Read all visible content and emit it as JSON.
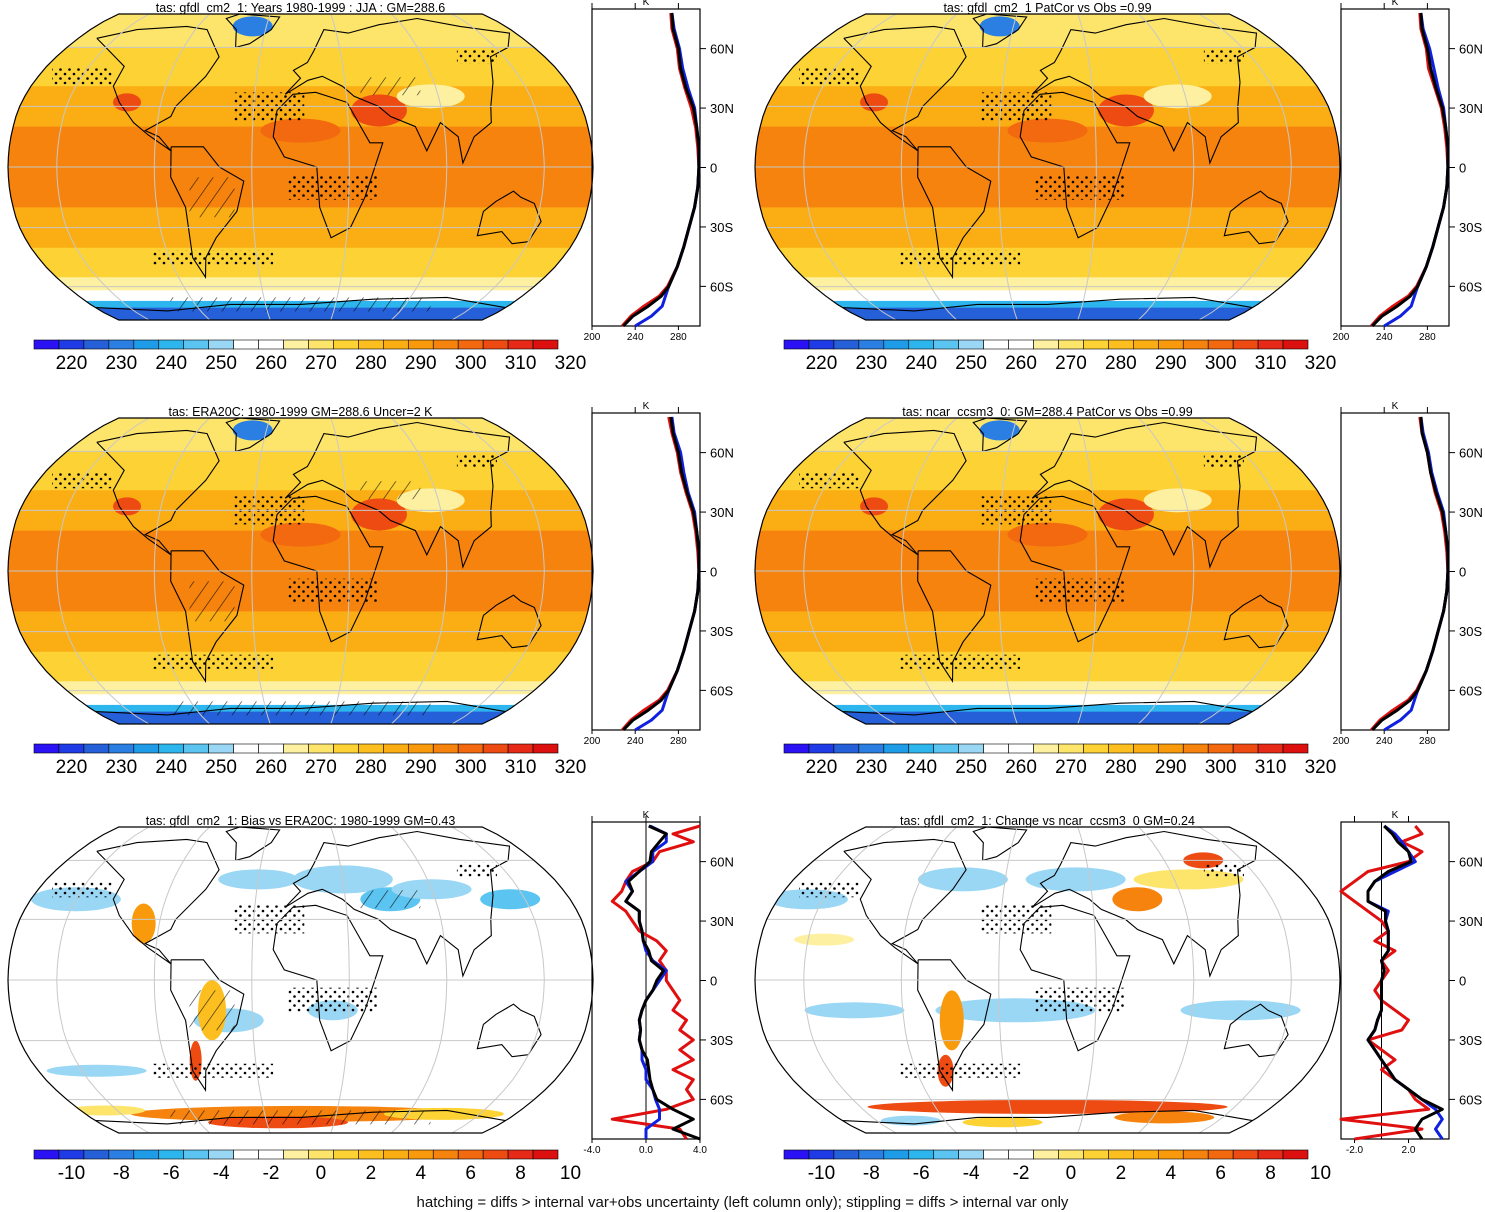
{
  "footer_note": "hatching = diffs > internal var+obs uncertainty (left column only); stippling = diffs > internal var only",
  "colors": {
    "abs_palette": [
      "#2b12f5",
      "#1f3be6",
      "#2660d8",
      "#2b7fe3",
      "#1e9ce8",
      "#2db6ee",
      "#5cc4f0",
      "#99d7f4",
      "#ffffff",
      "#ffffff",
      "#fdf0a0",
      "#fde46b",
      "#fcd235",
      "#fcbf1f",
      "#fbad14",
      "#f99a0d",
      "#f6830d",
      "#f3690f",
      "#ee4b12",
      "#e72a17",
      "#dd1010"
    ],
    "diff_palette": [
      "#2b12f5",
      "#1f3be6",
      "#2660d8",
      "#2b7fe3",
      "#1e9ce8",
      "#2db6ee",
      "#5cc4f0",
      "#99d7f4",
      "#ffffff",
      "#ffffff",
      "#fdf0a0",
      "#fde46b",
      "#fcd235",
      "#fcbf1f",
      "#fbad14",
      "#f99a0d",
      "#f6830d",
      "#f3690f",
      "#ee4b12",
      "#e72a17",
      "#dd1010"
    ],
    "model_line": "#e01010",
    "obs_line": "#1020e0",
    "mean_line": "#000000",
    "graticule": "#c8c8c8"
  },
  "chart_data": [
    {
      "type": "heatmap",
      "title": "tas: gfdl_cm2_1: Years 1980-1999 : JJA : GM=288.6",
      "colorbar_labels": [
        "220",
        "230",
        "240",
        "250",
        "260",
        "270",
        "280",
        "290",
        "300",
        "310",
        "320"
      ],
      "value_range": [
        215,
        325
      ],
      "palette": "abs",
      "map_kind": "abs",
      "hatch": true,
      "stipple": true,
      "profile": {
        "xlabel": "K",
        "x_ticks": [
          "200",
          "240",
          "280"
        ],
        "x_range": [
          200,
          300
        ],
        "lat_labels": [
          "60N",
          "30N",
          "0",
          "30S",
          "60S"
        ],
        "lat": [
          78,
          70,
          60,
          50,
          40,
          30,
          20,
          10,
          0,
          -10,
          -20,
          -30,
          -40,
          -50,
          -60,
          -65,
          -70,
          -75,
          -80
        ],
        "series": [
          {
            "color": "red",
            "values": [
              273,
              274,
              279,
              281,
              286,
              292,
              296,
              298,
              299,
              298,
              295,
              290,
              285,
              279,
              270,
              262,
              248,
              236,
              228
            ]
          },
          {
            "color": "blue",
            "values": [
              274,
              276,
              281,
              284,
              289,
              295,
              297,
              299,
              299,
              298,
              295,
              290,
              285,
              279,
              271,
              268,
              265,
              255,
              240
            ]
          },
          {
            "color": "black",
            "values": [
              274,
              275,
              280,
              282,
              287,
              294,
              297,
              299,
              299,
              298,
              295,
              290,
              285,
              279,
              271,
              264,
              252,
              238,
              229
            ]
          }
        ]
      }
    },
    {
      "type": "heatmap",
      "title": "tas: gfdl_cm2_1 PatCor vs Obs =0.99",
      "colorbar_labels": [
        "220",
        "230",
        "240",
        "250",
        "260",
        "270",
        "280",
        "290",
        "300",
        "310",
        "320"
      ],
      "value_range": [
        215,
        325
      ],
      "palette": "abs",
      "map_kind": "abs",
      "hatch": false,
      "stipple": true,
      "profile": {
        "xlabel": "K",
        "x_ticks": [
          "200",
          "240",
          "280"
        ],
        "x_range": [
          200,
          300
        ],
        "lat_labels": [
          "60N",
          "30N",
          "0",
          "30S",
          "60S"
        ],
        "lat": [
          78,
          70,
          60,
          50,
          40,
          30,
          20,
          10,
          0,
          -10,
          -20,
          -30,
          -40,
          -50,
          -60,
          -65,
          -70,
          -75,
          -80
        ],
        "series": [
          {
            "color": "red",
            "values": [
              273,
              274,
              279,
              281,
              287,
              293,
              296,
              298,
              299,
              298,
              295,
              290,
              285,
              279,
              270,
              262,
              248,
              236,
              228
            ]
          },
          {
            "color": "blue",
            "values": [
              274,
              276,
              282,
              286,
              290,
              295,
              297,
              299,
              299,
              298,
              295,
              290,
              285,
              279,
              271,
              268,
              265,
              255,
              240
            ]
          },
          {
            "color": "black",
            "values": [
              274,
              275,
              280,
              283,
              288,
              294,
              297,
              299,
              299,
              298,
              295,
              290,
              285,
              279,
              271,
              264,
              252,
              238,
              229
            ]
          }
        ]
      }
    },
    {
      "type": "heatmap",
      "title": "tas: ERA20C: 1980-1999 GM=288.6 Uncer=2 K",
      "colorbar_labels": [
        "220",
        "230",
        "240",
        "250",
        "260",
        "270",
        "280",
        "290",
        "300",
        "310",
        "320"
      ],
      "value_range": [
        215,
        325
      ],
      "palette": "abs",
      "map_kind": "abs",
      "hatch": true,
      "stipple": true,
      "profile": {
        "xlabel": "K",
        "x_ticks": [
          "200",
          "240",
          "280"
        ],
        "x_range": [
          200,
          300
        ],
        "lat_labels": [
          "60N",
          "30N",
          "0",
          "30S",
          "60S"
        ],
        "lat": [
          78,
          70,
          60,
          50,
          40,
          30,
          20,
          10,
          0,
          -10,
          -20,
          -30,
          -40,
          -50,
          -60,
          -65,
          -70,
          -75,
          -80
        ],
        "series": [
          {
            "color": "red",
            "values": [
              271,
              274,
              279,
              282,
              287,
              293,
              296,
              298,
              299,
              298,
              295,
              290,
              285,
              279,
              270,
              262,
              248,
              236,
              228
            ]
          },
          {
            "color": "blue",
            "values": [
              274,
              276,
              282,
              285,
              289,
              295,
              297,
              299,
              299,
              298,
              295,
              290,
              285,
              279,
              271,
              268,
              265,
              255,
              240
            ]
          },
          {
            "color": "black",
            "values": [
              273,
              275,
              280,
              283,
              288,
              294,
              297,
              299,
              299,
              298,
              295,
              290,
              285,
              279,
              271,
              264,
              252,
              238,
              229
            ]
          }
        ]
      }
    },
    {
      "type": "heatmap",
      "title": "tas: ncar_ccsm3_0: GM=288.4 PatCor vs Obs =0.99",
      "colorbar_labels": [
        "220",
        "230",
        "240",
        "250",
        "260",
        "270",
        "280",
        "290",
        "300",
        "310",
        "320"
      ],
      "value_range": [
        215,
        325
      ],
      "palette": "abs",
      "map_kind": "abs",
      "hatch": false,
      "stipple": true,
      "profile": {
        "xlabel": "K",
        "x_ticks": [
          "200",
          "240",
          "280"
        ],
        "x_range": [
          200,
          300
        ],
        "lat_labels": [
          "60N",
          "30N",
          "0",
          "30S",
          "60S"
        ],
        "lat": [
          78,
          70,
          60,
          50,
          40,
          30,
          20,
          10,
          0,
          -10,
          -20,
          -30,
          -40,
          -50,
          -60,
          -65,
          -70,
          -75,
          -80
        ],
        "series": [
          {
            "color": "red",
            "values": [
              273,
              275,
              280,
              283,
              287,
              293,
              296,
              298,
              299,
              298,
              295,
              290,
              285,
              279,
              270,
              262,
              248,
              236,
              228
            ]
          },
          {
            "color": "blue",
            "values": [
              274,
              276,
              281,
              284,
              289,
              295,
              297,
              299,
              299,
              298,
              295,
              290,
              285,
              279,
              271,
              268,
              265,
              255,
              240
            ]
          },
          {
            "color": "black",
            "values": [
              274,
              275,
              280,
              283,
              288,
              294,
              297,
              299,
              299,
              298,
              295,
              290,
              285,
              279,
              271,
              264,
              252,
              238,
              229
            ]
          }
        ]
      }
    },
    {
      "type": "heatmap",
      "title": "tas: gfdl_cm2_1: Bias vs ERA20C: 1980-1999 GM=0.43",
      "colorbar_labels": [
        "-10",
        "-8",
        "-6",
        "-4",
        "-2",
        "0",
        "2",
        "4",
        "6",
        "8",
        "10"
      ],
      "value_range": [
        -11,
        11
      ],
      "palette": "diff",
      "map_kind": "diff",
      "hatch": true,
      "stipple": true,
      "profile": {
        "xlabel": "K",
        "x_ticks": [
          "-4.0",
          "0.0",
          "4.0"
        ],
        "x_range": [
          -4,
          4
        ],
        "lat_labels": [
          "60N",
          "30N",
          "0",
          "30S",
          "60S"
        ],
        "lat": [
          78,
          74,
          70,
          65,
          60,
          55,
          50,
          45,
          40,
          35,
          30,
          25,
          20,
          15,
          10,
          5,
          0,
          -5,
          -10,
          -15,
          -20,
          -25,
          -30,
          -35,
          -40,
          -45,
          -50,
          -55,
          -60,
          -65,
          -70,
          -75,
          -80
        ],
        "series": [
          {
            "color": "red",
            "values": [
              4,
              2,
              3.5,
              1,
              0.5,
              -1,
              -1.5,
              -1.8,
              -2.5,
              -1.5,
              -1,
              -0.5,
              0.8,
              1.5,
              1,
              1.5,
              1.5,
              2,
              2.5,
              2,
              3,
              2.5,
              3.5,
              2.5,
              3.5,
              2,
              3.5,
              3,
              3.5,
              1.5,
              -2.5,
              2.5,
              3
            ]
          },
          {
            "color": "blue",
            "values": [
              0.3,
              1.5,
              1.5,
              0.5,
              0.5,
              -0.5,
              -1.5,
              -1,
              -1.5,
              -0.5,
              -0.5,
              -0.3,
              -0.2,
              0,
              0.5,
              1.5,
              1,
              0.5,
              0,
              -0.3,
              -0.5,
              -0.4,
              -0.5,
              -0.3,
              -0.3,
              0,
              0,
              0.5,
              0.7,
              1,
              1,
              0,
              0
            ]
          },
          {
            "color": "black",
            "values": [
              0.2,
              1.5,
              1,
              0.4,
              0.3,
              -0.5,
              -1.3,
              -1,
              -1.5,
              -0.5,
              -0.5,
              -0.3,
              -0.2,
              0.2,
              0.4,
              1.3,
              0.8,
              0.5,
              0,
              -0.3,
              -0.5,
              -0.4,
              -0.5,
              -0.3,
              0.1,
              0.2,
              0.3,
              0.5,
              0.8,
              2,
              3.5,
              2,
              4
            ]
          }
        ]
      }
    },
    {
      "type": "heatmap",
      "title": "tas: gfdl_cm2_1: Change vs ncar_ccsm3_0 GM=0.24",
      "colorbar_labels": [
        "-10",
        "-8",
        "-6",
        "-4",
        "-2",
        "0",
        "2",
        "4",
        "6",
        "8",
        "10"
      ],
      "value_range": [
        -11,
        11
      ],
      "palette": "diff",
      "map_kind": "change",
      "hatch": false,
      "stipple": true,
      "profile": {
        "xlabel": "K",
        "x_ticks": [
          "-2.0",
          "2.0"
        ],
        "x_range": [
          -3,
          5
        ],
        "lat_labels": [
          "60N",
          "30N",
          "0",
          "30S",
          "60S"
        ],
        "lat": [
          78,
          74,
          70,
          65,
          60,
          55,
          50,
          45,
          40,
          35,
          30,
          25,
          20,
          15,
          10,
          5,
          0,
          -5,
          -10,
          -15,
          -20,
          -25,
          -30,
          -35,
          -40,
          -45,
          -50,
          -55,
          -60,
          -65,
          -70,
          -75,
          -80
        ],
        "series": [
          {
            "color": "red",
            "values": [
              2.5,
              3,
              1.5,
              3,
              2,
              -1,
              -2,
              -3,
              -2,
              -1,
              0,
              0.5,
              -0.5,
              1,
              0,
              0.5,
              0,
              -0.5,
              0,
              1,
              2,
              1.5,
              -1,
              0,
              1,
              0,
              1,
              2,
              2.5,
              3.5,
              -3,
              3,
              -2
            ]
          },
          {
            "color": "blue",
            "values": [
              0.2,
              1,
              1.5,
              2,
              2.5,
              1,
              -0.5,
              -1,
              -1,
              0.5,
              0.3,
              0.5,
              0.5,
              0.5,
              0,
              0.2,
              0,
              0,
              0,
              0,
              -0.3,
              -0.5,
              -1,
              -0.5,
              0,
              0.5,
              1,
              2,
              3,
              4,
              4.5,
              4,
              4.5
            ]
          },
          {
            "color": "black",
            "values": [
              0.2,
              0.8,
              1.2,
              2,
              2.2,
              0.5,
              -0.5,
              -1,
              -1,
              0.3,
              0.3,
              0.5,
              0.5,
              0.5,
              0,
              0.2,
              0,
              0,
              0,
              0,
              -0.3,
              -0.5,
              -1,
              -0.5,
              0,
              0.5,
              1,
              2,
              3,
              4.5,
              3,
              2.5,
              3
            ]
          }
        ]
      }
    }
  ]
}
